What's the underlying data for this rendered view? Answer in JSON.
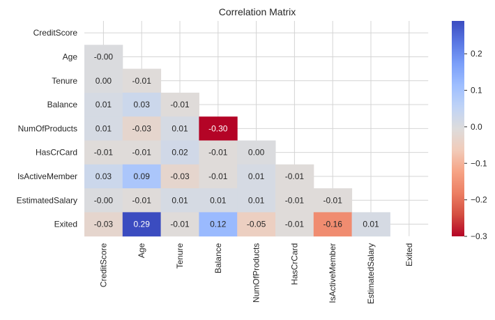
{
  "chart_data": {
    "type": "heatmap",
    "title": "Correlation Matrix",
    "variables": [
      "CreditScore",
      "Age",
      "Tenure",
      "Balance",
      "NumOfProducts",
      "HasCrCard",
      "IsActiveMember",
      "EstimatedSalary",
      "Exited"
    ],
    "mask": "upper-triangle-and-diagonal",
    "values": [
      [
        null,
        null,
        null,
        null,
        null,
        null,
        null,
        null,
        null
      ],
      [
        -0.0,
        null,
        null,
        null,
        null,
        null,
        null,
        null,
        null
      ],
      [
        0.0,
        -0.01,
        null,
        null,
        null,
        null,
        null,
        null,
        null
      ],
      [
        0.01,
        0.03,
        -0.01,
        null,
        null,
        null,
        null,
        null,
        null
      ],
      [
        0.01,
        -0.03,
        0.01,
        -0.3,
        null,
        null,
        null,
        null,
        null
      ],
      [
        -0.01,
        -0.01,
        0.02,
        -0.01,
        0.0,
        null,
        null,
        null,
        null
      ],
      [
        0.03,
        0.09,
        -0.03,
        -0.01,
        0.01,
        -0.01,
        null,
        null,
        null
      ],
      [
        -0.0,
        -0.01,
        0.01,
        0.01,
        0.01,
        -0.01,
        -0.01,
        null,
        null
      ],
      [
        -0.03,
        0.29,
        -0.01,
        0.12,
        -0.05,
        -0.01,
        -0.16,
        0.01,
        null
      ]
    ],
    "value_labels": [
      [
        null,
        null,
        null,
        null,
        null,
        null,
        null,
        null,
        null
      ],
      [
        "-0.00",
        null,
        null,
        null,
        null,
        null,
        null,
        null,
        null
      ],
      [
        "0.00",
        "-0.01",
        null,
        null,
        null,
        null,
        null,
        null,
        null
      ],
      [
        "0.01",
        "0.03",
        "-0.01",
        null,
        null,
        null,
        null,
        null,
        null
      ],
      [
        "0.01",
        "-0.03",
        "0.01",
        "-0.30",
        null,
        null,
        null,
        null,
        null
      ],
      [
        "-0.01",
        "-0.01",
        "0.02",
        "-0.01",
        "0.00",
        null,
        null,
        null,
        null
      ],
      [
        "0.03",
        "0.09",
        "-0.03",
        "-0.01",
        "0.01",
        "-0.01",
        null,
        null,
        null
      ],
      [
        "-0.00",
        "-0.01",
        "0.01",
        "0.01",
        "0.01",
        "-0.01",
        "-0.01",
        null,
        null
      ],
      [
        "-0.03",
        "0.29",
        "-0.01",
        "0.12",
        "-0.05",
        "-0.01",
        "-0.16",
        "0.01",
        null
      ]
    ],
    "colorbar": {
      "colormap": "coolwarm",
      "vmin": -0.3,
      "vmax": 0.29,
      "ticks": [
        0.2,
        0.1,
        0.0,
        -0.1,
        -0.2,
        -0.3
      ],
      "tick_labels": [
        "0.2",
        "0.1",
        "0.0",
        "−0.1",
        "−0.2",
        "−0.3"
      ]
    },
    "grid": true,
    "colors": {
      "background": "#ffffff",
      "grid": "#d4d4d4",
      "text": "#262626"
    }
  }
}
